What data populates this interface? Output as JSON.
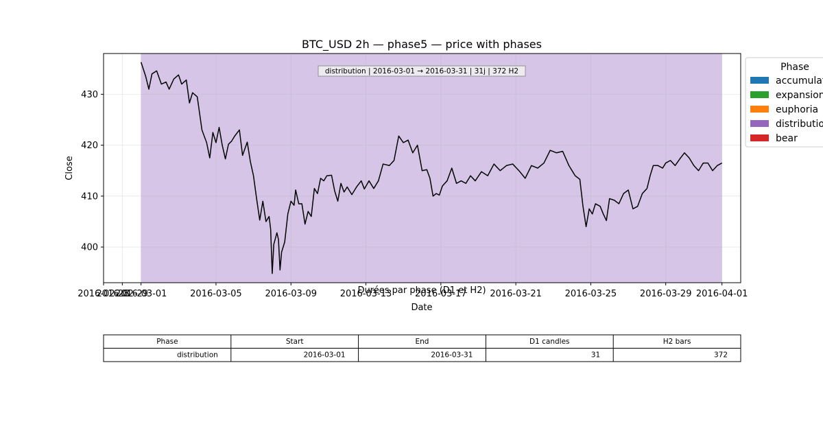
{
  "chart_data": [
    {
      "type": "line",
      "title": "BTC_USD 2h — phase5 — price with phases",
      "xlabel": "Date",
      "ylabel": "Close",
      "subtitle_overlay": "Durées par phase (D1 et H2)",
      "annotation": "distribution | 2016-03-01 → 2016-03-31 | 31j | 372 H2",
      "x_range": [
        "2016-02-28",
        "2016-04-02"
      ],
      "ylim": [
        393,
        438
      ],
      "grid": true,
      "x_ticks": [
        {
          "date": "2016-02-28",
          "label": "2016-02-28"
        },
        {
          "date": "2016-02-29",
          "label": "2016-02-29"
        },
        {
          "date": "2016-03-01",
          "label": "2016-03-01"
        },
        {
          "date": "2016-03-05",
          "label": "2016-03-05"
        },
        {
          "date": "2016-03-09",
          "label": "2016-03-09"
        },
        {
          "date": "2016-03-13",
          "label": "2016-03-13"
        },
        {
          "date": "2016-03-17",
          "label": "2016-03-17"
        },
        {
          "date": "2016-03-21",
          "label": "2016-03-21"
        },
        {
          "date": "2016-03-25",
          "label": "2016-03-25"
        },
        {
          "date": "2016-03-29",
          "label": "2016-03-29"
        },
        {
          "date": "2016-04-01",
          "label": "2016-04-01"
        }
      ],
      "y_ticks": [
        400,
        410,
        420,
        430
      ],
      "phase_spans": [
        {
          "phase": "distribution",
          "start": "2016-03-01",
          "end": "2016-03-31 23:59",
          "color": "#9467bd"
        }
      ],
      "legend": {
        "title": "Phase",
        "position": "outside-right",
        "entries": [
          {
            "label": "accumulation",
            "color": "#1f77b4"
          },
          {
            "label": "expansion",
            "color": "#2ca02c"
          },
          {
            "label": "euphoria",
            "color": "#ff7f0e"
          },
          {
            "label": "distribution",
            "color": "#9467bd"
          },
          {
            "label": "bear",
            "color": "#d62728"
          }
        ]
      },
      "series": [
        {
          "color": "#000000",
          "points": [
            [
              "2016-03-01 00:00",
              436.3
            ],
            [
              "2016-03-01 06:00",
              433.5
            ],
            [
              "2016-03-01 10:00",
              431.0
            ],
            [
              "2016-03-01 14:00",
              434.0
            ],
            [
              "2016-03-01 20:00",
              434.6
            ],
            [
              "2016-03-02 02:00",
              432.0
            ],
            [
              "2016-03-02 08:00",
              432.4
            ],
            [
              "2016-03-02 12:00",
              431.0
            ],
            [
              "2016-03-02 18:00",
              433.0
            ],
            [
              "2016-03-03 00:00",
              433.8
            ],
            [
              "2016-03-03 04:00",
              432.0
            ],
            [
              "2016-03-03 10:00",
              432.8
            ],
            [
              "2016-03-03 14:00",
              428.3
            ],
            [
              "2016-03-03 18:00",
              430.3
            ],
            [
              "2016-03-04 00:00",
              429.5
            ],
            [
              "2016-03-04 06:00",
              423.0
            ],
            [
              "2016-03-04 12:00",
              420.5
            ],
            [
              "2016-03-04 16:00",
              417.5
            ],
            [
              "2016-03-04 20:00",
              422.5
            ],
            [
              "2016-03-05 00:00",
              420.5
            ],
            [
              "2016-03-05 04:00",
              423.5
            ],
            [
              "2016-03-05 08:00",
              420.0
            ],
            [
              "2016-03-05 12:00",
              417.3
            ],
            [
              "2016-03-05 16:00",
              420.2
            ],
            [
              "2016-03-05 20:00",
              420.8
            ],
            [
              "2016-03-06 00:00",
              421.8
            ],
            [
              "2016-03-06 06:00",
              423.0
            ],
            [
              "2016-03-06 10:00",
              418.0
            ],
            [
              "2016-03-06 16:00",
              420.6
            ],
            [
              "2016-03-06 20:00",
              416.8
            ],
            [
              "2016-03-07 00:00",
              414.0
            ],
            [
              "2016-03-07 04:00",
              409.5
            ],
            [
              "2016-03-07 08:00",
              405.3
            ],
            [
              "2016-03-07 12:00",
              409.0
            ],
            [
              "2016-03-07 16:00",
              405.0
            ],
            [
              "2016-03-07 20:00",
              406.0
            ],
            [
              "2016-03-07 22:00",
              403.5
            ],
            [
              "2016-03-08 00:00",
              394.8
            ],
            [
              "2016-03-08 02:00",
              400.5
            ],
            [
              "2016-03-08 06:00",
              402.8
            ],
            [
              "2016-03-08 08:00",
              401.5
            ],
            [
              "2016-03-08 10:00",
              395.5
            ],
            [
              "2016-03-08 12:00",
              399.0
            ],
            [
              "2016-03-08 16:00",
              401.0
            ],
            [
              "2016-03-08 20:00",
              406.5
            ],
            [
              "2016-03-09 00:00",
              409.0
            ],
            [
              "2016-03-09 04:00",
              408.2
            ],
            [
              "2016-03-09 06:00",
              411.2
            ],
            [
              "2016-03-09 10:00",
              408.5
            ],
            [
              "2016-03-09 14:00",
              408.5
            ],
            [
              "2016-03-09 18:00",
              404.5
            ],
            [
              "2016-03-09 22:00",
              407.0
            ],
            [
              "2016-03-10 02:00",
              406.0
            ],
            [
              "2016-03-10 06:00",
              411.5
            ],
            [
              "2016-03-10 10:00",
              410.5
            ],
            [
              "2016-03-10 14:00",
              413.5
            ],
            [
              "2016-03-10 18:00",
              413.0
            ],
            [
              "2016-03-10 22:00",
              414.0
            ],
            [
              "2016-03-11 04:00",
              414.1
            ],
            [
              "2016-03-11 08:00",
              411.0
            ],
            [
              "2016-03-11 12:00",
              409.0
            ],
            [
              "2016-03-11 16:00",
              412.5
            ],
            [
              "2016-03-11 20:00",
              410.8
            ],
            [
              "2016-03-12 00:00",
              411.8
            ],
            [
              "2016-03-12 06:00",
              410.3
            ],
            [
              "2016-03-12 12:00",
              411.8
            ],
            [
              "2016-03-12 18:00",
              413.0
            ],
            [
              "2016-03-12 22:00",
              411.4
            ],
            [
              "2016-03-13 04:00",
              413.0
            ],
            [
              "2016-03-13 10:00",
              411.5
            ],
            [
              "2016-03-13 16:00",
              413.0
            ],
            [
              "2016-03-13 22:00",
              416.3
            ],
            [
              "2016-03-14 06:00",
              416.0
            ],
            [
              "2016-03-14 12:00",
              417.0
            ],
            [
              "2016-03-14 18:00",
              421.8
            ],
            [
              "2016-03-15 00:00",
              420.5
            ],
            [
              "2016-03-15 06:00",
              421.0
            ],
            [
              "2016-03-15 12:00",
              418.5
            ],
            [
              "2016-03-15 18:00",
              420.0
            ],
            [
              "2016-03-16 00:00",
              415.0
            ],
            [
              "2016-03-16 06:00",
              415.2
            ],
            [
              "2016-03-16 10:00",
              413.5
            ],
            [
              "2016-03-16 14:00",
              410.0
            ],
            [
              "2016-03-16 18:00",
              410.5
            ],
            [
              "2016-03-16 22:00",
              410.2
            ],
            [
              "2016-03-17 02:00",
              412.0
            ],
            [
              "2016-03-17 08:00",
              413.0
            ],
            [
              "2016-03-17 14:00",
              415.5
            ],
            [
              "2016-03-17 20:00",
              412.5
            ],
            [
              "2016-03-18 02:00",
              413.0
            ],
            [
              "2016-03-18 08:00",
              412.5
            ],
            [
              "2016-03-18 14:00",
              414.0
            ],
            [
              "2016-03-18 20:00",
              413.0
            ],
            [
              "2016-03-19 04:00",
              414.8
            ],
            [
              "2016-03-19 12:00",
              414.0
            ],
            [
              "2016-03-19 20:00",
              416.3
            ],
            [
              "2016-03-20 04:00",
              415.0
            ],
            [
              "2016-03-20 12:00",
              416.0
            ],
            [
              "2016-03-20 20:00",
              416.3
            ],
            [
              "2016-03-21 04:00",
              415.0
            ],
            [
              "2016-03-21 12:00",
              413.5
            ],
            [
              "2016-03-21 20:00",
              416.0
            ],
            [
              "2016-03-22 04:00",
              415.5
            ],
            [
              "2016-03-22 12:00",
              416.5
            ],
            [
              "2016-03-22 20:00",
              419.0
            ],
            [
              "2016-03-23 04:00",
              418.5
            ],
            [
              "2016-03-23 12:00",
              418.8
            ],
            [
              "2016-03-23 20:00",
              416.0
            ],
            [
              "2016-03-24 04:00",
              414.0
            ],
            [
              "2016-03-24 10:00",
              413.3
            ],
            [
              "2016-03-24 14:00",
              408.0
            ],
            [
              "2016-03-24 18:00",
              404.0
            ],
            [
              "2016-03-24 22:00",
              407.5
            ],
            [
              "2016-03-25 02:00",
              406.5
            ],
            [
              "2016-03-25 06:00",
              408.5
            ],
            [
              "2016-03-25 12:00",
              408.0
            ],
            [
              "2016-03-25 16:00",
              406.5
            ],
            [
              "2016-03-25 20:00",
              405.2
            ],
            [
              "2016-03-26 00:00",
              409.5
            ],
            [
              "2016-03-26 06:00",
              409.2
            ],
            [
              "2016-03-26 12:00",
              408.5
            ],
            [
              "2016-03-26 18:00",
              410.5
            ],
            [
              "2016-03-27 00:00",
              411.2
            ],
            [
              "2016-03-27 06:00",
              407.5
            ],
            [
              "2016-03-27 12:00",
              408.0
            ],
            [
              "2016-03-27 18:00",
              410.5
            ],
            [
              "2016-03-28 00:00",
              411.5
            ],
            [
              "2016-03-28 04:00",
              414.0
            ],
            [
              "2016-03-28 08:00",
              416.0
            ],
            [
              "2016-03-28 14:00",
              416.0
            ],
            [
              "2016-03-28 20:00",
              415.5
            ],
            [
              "2016-03-29 00:00",
              416.5
            ],
            [
              "2016-03-29 06:00",
              417.0
            ],
            [
              "2016-03-29 12:00",
              416.0
            ],
            [
              "2016-03-29 18:00",
              417.3
            ],
            [
              "2016-03-30 00:00",
              418.5
            ],
            [
              "2016-03-30 06:00",
              417.5
            ],
            [
              "2016-03-30 12:00",
              416.0
            ],
            [
              "2016-03-30 18:00",
              415.0
            ],
            [
              "2016-03-31 00:00",
              416.5
            ],
            [
              "2016-03-31 06:00",
              416.5
            ],
            [
              "2016-03-31 12:00",
              415.0
            ],
            [
              "2016-03-31 18:00",
              416.0
            ],
            [
              "2016-03-31 23:59",
              416.5
            ]
          ]
        }
      ]
    },
    {
      "type": "table",
      "columns": [
        "Phase",
        "Start",
        "End",
        "D1 candles",
        "H2 bars"
      ],
      "rows": [
        [
          "distribution",
          "2016-03-01",
          "2016-03-31",
          "31",
          "372"
        ]
      ]
    }
  ]
}
